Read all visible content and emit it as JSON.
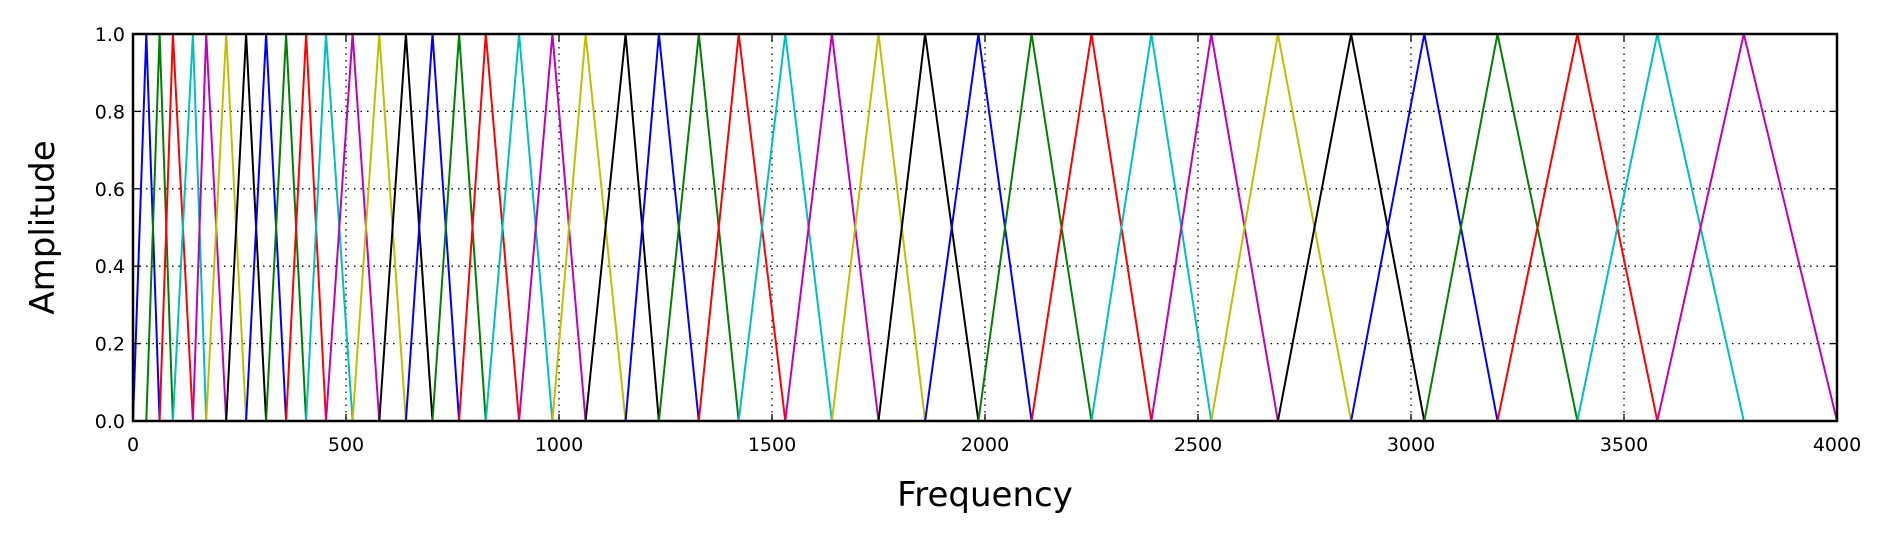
{
  "chart_data": {
    "type": "line",
    "title": "",
    "xlabel": "Frequency",
    "ylabel": "Amplitude",
    "xlim": [
      0,
      4000
    ],
    "ylim": [
      0.0,
      1.0
    ],
    "xticks": [
      "0",
      "500",
      "1000",
      "1500",
      "2000",
      "2500",
      "3000",
      "3500",
      "4000"
    ],
    "yticks": [
      "0.0",
      "0.2",
      "0.4",
      "0.6",
      "0.8",
      "1.0"
    ],
    "grid": true,
    "grid_style": "dotted",
    "legend": "none",
    "series_colors_cycle": [
      "#0000ff",
      "#008000",
      "#ff0000",
      "#00bfbf",
      "#bf00bf",
      "#bfbf00",
      "#000000"
    ],
    "description_of_series": "triangular filters; filter k rises from edge k to peak at edge k+1 (amplitude 1) and falls to edge k+2",
    "filter_edges_hz": [
      0,
      31.25,
      62.5,
      93.75,
      140.6,
      171.9,
      218.75,
      265.6,
      312.5,
      359.4,
      406.25,
      453.1,
      515.6,
      578.1,
      640.6,
      703.1,
      765.6,
      828.1,
      906.25,
      984.4,
      1062.5,
      1156.25,
      1234.4,
      1328.1,
      1421.9,
      1531.25,
      1640.6,
      1750,
      1859.4,
      1984.4,
      2109.4,
      2250,
      2390.6,
      2531.25,
      2687.5,
      2859.4,
      3031.25,
      3203.1,
      3390.6,
      3578.1,
      3781.25,
      4000
    ]
  }
}
